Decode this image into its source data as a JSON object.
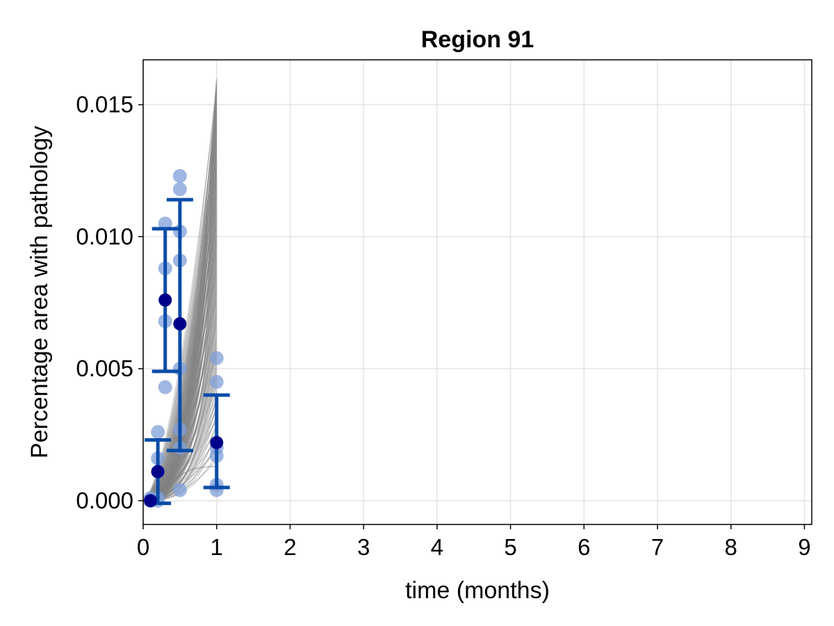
{
  "chart_data": {
    "type": "scatter",
    "title": "Region 91",
    "xlabel": "time (months)",
    "ylabel": "Percentage area with pathology",
    "xlim": [
      0,
      9.1
    ],
    "ylim": [
      -0.0009,
      0.0167
    ],
    "x_ticks": [
      0,
      1,
      2,
      3,
      4,
      5,
      6,
      7,
      8,
      9
    ],
    "y_ticks": [
      0.0,
      0.005,
      0.01,
      0.015
    ],
    "y_tick_labels": [
      "0.000",
      "0.005",
      "0.010",
      "0.015"
    ],
    "grid": true,
    "colors": {
      "trajectories": "#808080",
      "observations": "#7f9fd8",
      "means": "#00008b",
      "error_bars": "#0a4ca8"
    },
    "trajectories": {
      "description_count": 160,
      "x_range": [
        0,
        1.0
      ],
      "endpoint_min_at_1_month": 0.0013,
      "endpoint_max_at_1_month": 0.016
    },
    "observations": [
      {
        "x": 0.1,
        "y": 0.0
      },
      {
        "x": 0.1,
        "y": 5e-05
      },
      {
        "x": 0.1,
        "y": 0.0001
      },
      {
        "x": 0.2,
        "y": 0.0026
      },
      {
        "x": 0.2,
        "y": 0.0016
      },
      {
        "x": 0.2,
        "y": 0.0011
      },
      {
        "x": 0.2,
        "y": 0.0001
      },
      {
        "x": 0.2,
        "y": 0.0
      },
      {
        "x": 0.3,
        "y": 0.0105
      },
      {
        "x": 0.3,
        "y": 0.0088
      },
      {
        "x": 0.3,
        "y": 0.0068
      },
      {
        "x": 0.3,
        "y": 0.0043
      },
      {
        "x": 0.5,
        "y": 0.0123
      },
      {
        "x": 0.5,
        "y": 0.0118
      },
      {
        "x": 0.5,
        "y": 0.0102
      },
      {
        "x": 0.5,
        "y": 0.0091
      },
      {
        "x": 0.5,
        "y": 0.005
      },
      {
        "x": 0.5,
        "y": 0.0027
      },
      {
        "x": 0.5,
        "y": 0.002
      },
      {
        "x": 0.5,
        "y": 0.0004
      },
      {
        "x": 1.0,
        "y": 0.0054
      },
      {
        "x": 1.0,
        "y": 0.0045
      },
      {
        "x": 1.0,
        "y": 0.002
      },
      {
        "x": 1.0,
        "y": 0.0017
      },
      {
        "x": 1.0,
        "y": 0.0006
      },
      {
        "x": 1.0,
        "y": 0.0004
      }
    ],
    "means": [
      {
        "x": 0.1,
        "y": 0.0,
        "lower": 0.0,
        "upper": 0.0
      },
      {
        "x": 0.2,
        "y": 0.0011,
        "lower": -0.0001,
        "upper": 0.0023
      },
      {
        "x": 0.3,
        "y": 0.0076,
        "lower": 0.0049,
        "upper": 0.0103
      },
      {
        "x": 0.5,
        "y": 0.0067,
        "lower": 0.0019,
        "upper": 0.0114
      },
      {
        "x": 1.0,
        "y": 0.0022,
        "lower": 0.0005,
        "upper": 0.004
      }
    ]
  }
}
